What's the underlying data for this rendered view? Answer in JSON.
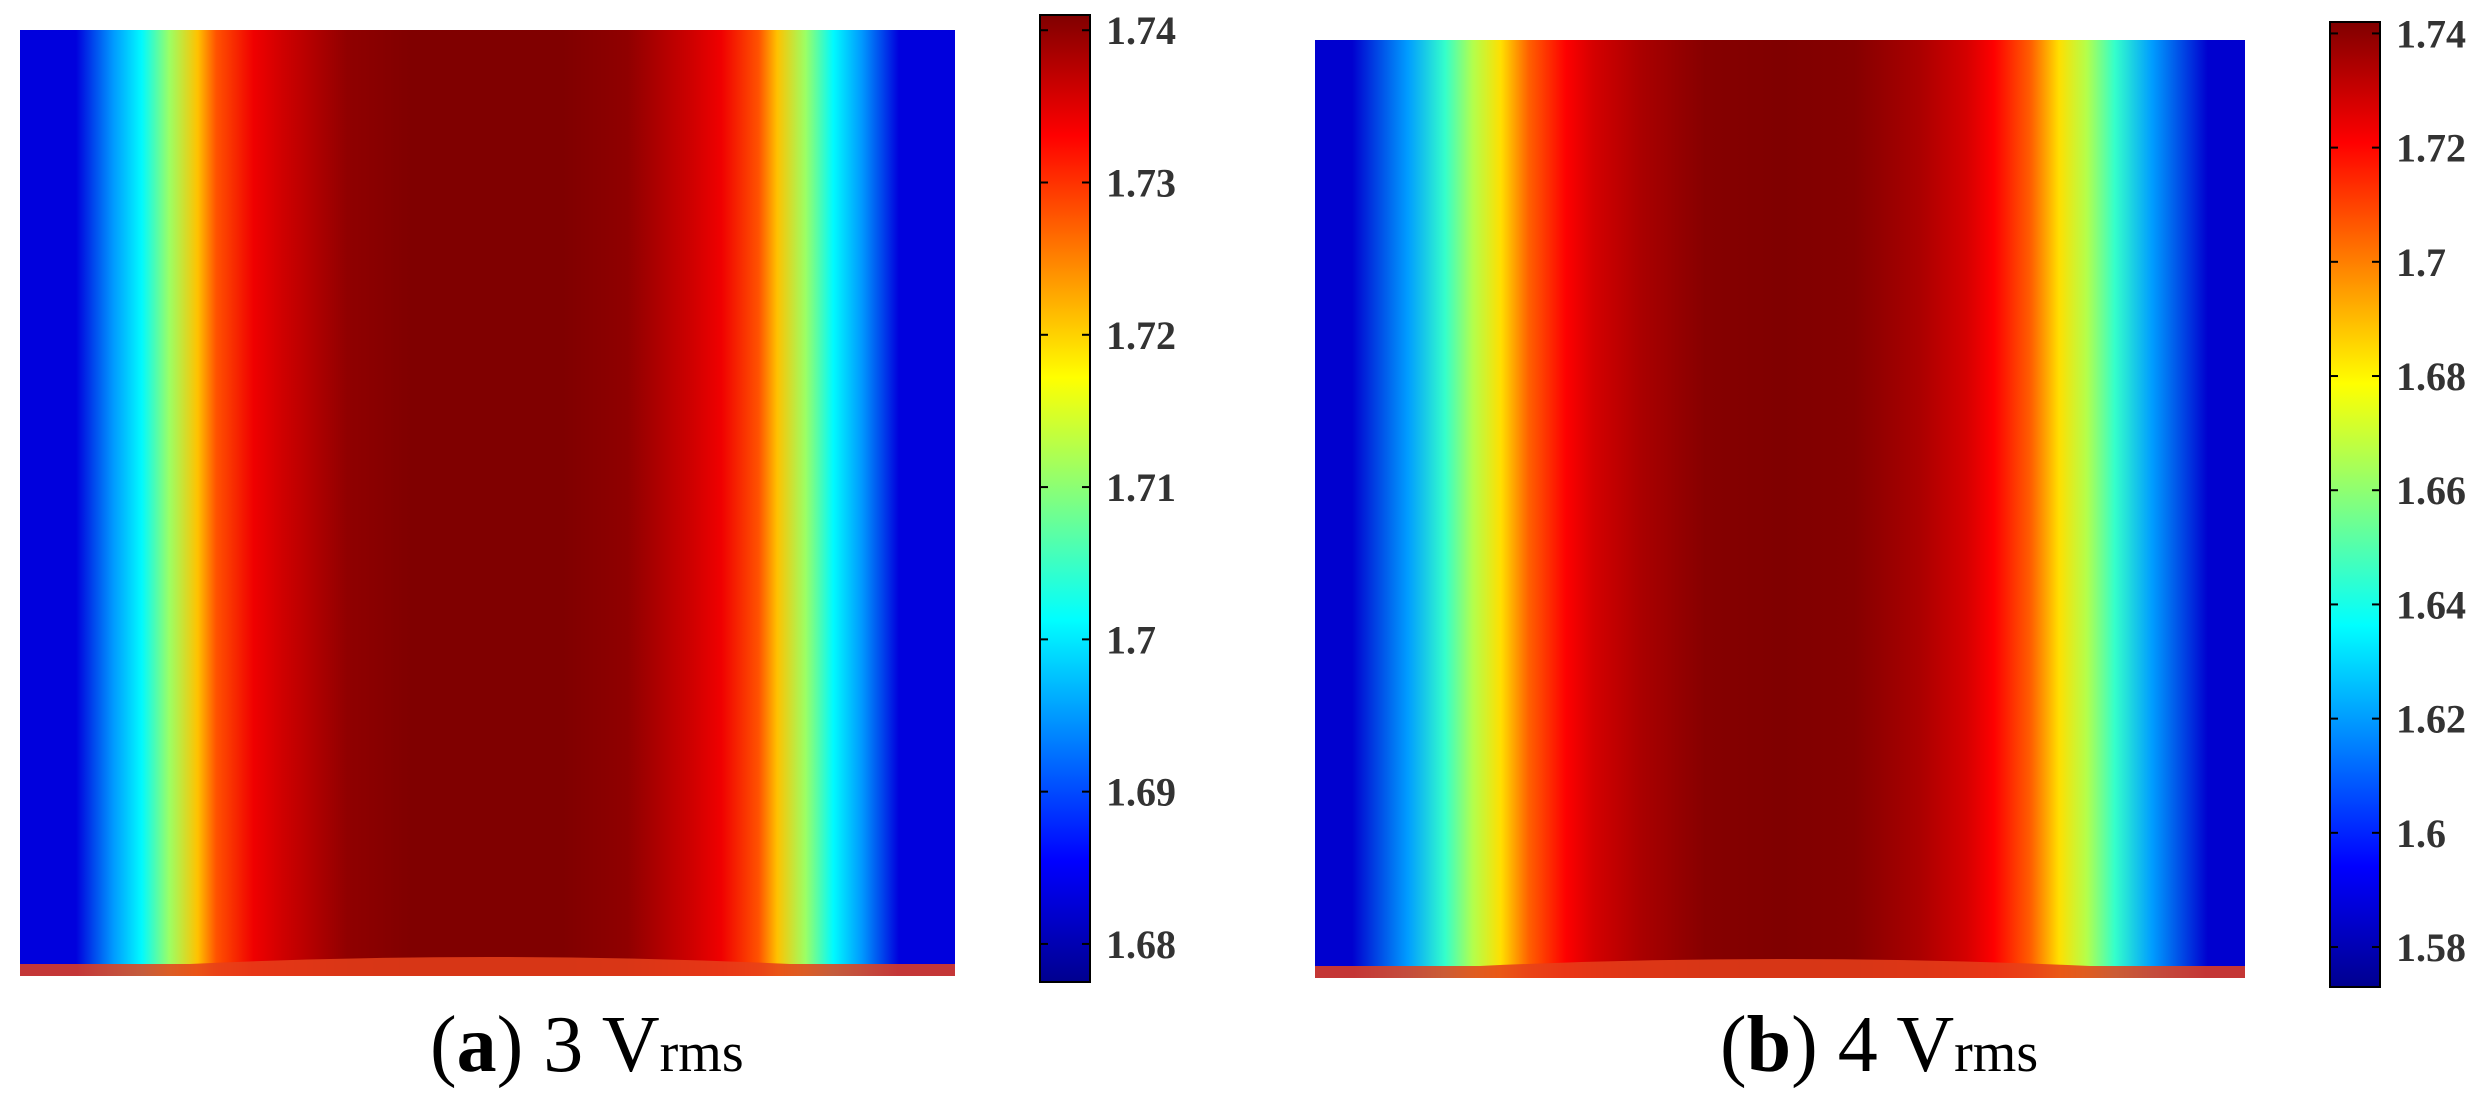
{
  "colormap": [
    "#00008f",
    "#0000ff",
    "#0080ff",
    "#00ffff",
    "#80ff80",
    "#ffff00",
    "#ff8000",
    "#ff0000",
    "#800000"
  ],
  "chart_data": [
    {
      "type": "heatmap",
      "caption": {
        "label": "a",
        "pre": "(",
        "post": ") 3 V",
        "sub": "rms"
      },
      "colorbar": {
        "min": 1.6775,
        "max": 1.741,
        "ticks": [
          "1.68",
          "1.69",
          "1.7",
          "1.71",
          "1.72",
          "1.73",
          "1.74"
        ]
      },
      "profile": {
        "x": [
          0,
          0.06,
          0.1,
          0.13,
          0.16,
          0.19,
          0.21,
          0.25,
          0.28,
          0.35,
          0.42,
          0.5,
          0.58,
          0.65,
          0.72,
          0.75,
          0.79,
          0.81,
          0.84,
          0.87,
          0.9,
          0.94,
          1
        ],
        "value": [
          1.683,
          1.683,
          1.695,
          1.701,
          1.711,
          1.721,
          1.728,
          1.734,
          1.736,
          1.74,
          1.741,
          1.741,
          1.741,
          1.74,
          1.736,
          1.734,
          1.728,
          1.721,
          1.711,
          1.701,
          1.695,
          1.683,
          1.683
        ]
      }
    },
    {
      "type": "heatmap",
      "caption": {
        "label": "b",
        "pre": "(",
        "post": ") 4 V",
        "sub": "rms"
      },
      "colorbar": {
        "min": 1.573,
        "max": 1.742,
        "ticks": [
          "1.58",
          "1.6",
          "1.62",
          "1.64",
          "1.66",
          "1.68",
          "1.7",
          "1.72",
          "1.74"
        ]
      },
      "profile": {
        "x": [
          0,
          0.04,
          0.1,
          0.14,
          0.17,
          0.2,
          0.23,
          0.27,
          0.3,
          0.35,
          0.42,
          0.5,
          0.58,
          0.65,
          0.7,
          0.73,
          0.77,
          0.8,
          0.83,
          0.86,
          0.9,
          0.96,
          1
        ],
        "value": [
          1.585,
          1.585,
          1.62,
          1.645,
          1.666,
          1.684,
          1.705,
          1.721,
          1.728,
          1.735,
          1.741,
          1.742,
          1.741,
          1.735,
          1.728,
          1.721,
          1.705,
          1.684,
          1.666,
          1.645,
          1.62,
          1.585,
          1.585
        ]
      }
    }
  ]
}
